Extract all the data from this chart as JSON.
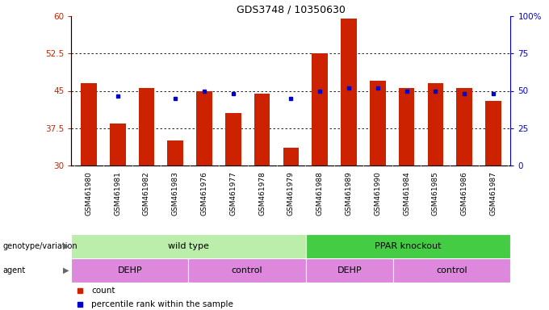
{
  "title": "GDS3748 / 10350630",
  "samples": [
    "GSM461980",
    "GSM461981",
    "GSM461982",
    "GSM461983",
    "GSM461976",
    "GSM461977",
    "GSM461978",
    "GSM461979",
    "GSM461988",
    "GSM461989",
    "GSM461990",
    "GSM461984",
    "GSM461985",
    "GSM461986",
    "GSM461987"
  ],
  "bar_values": [
    46.5,
    38.5,
    45.5,
    35.0,
    45.0,
    40.5,
    44.5,
    33.5,
    52.5,
    59.5,
    47.0,
    45.5,
    46.5,
    45.5,
    43.0
  ],
  "dot_values": [
    null,
    44.0,
    null,
    43.5,
    45.0,
    44.5,
    null,
    43.5,
    45.0,
    45.5,
    45.5,
    45.0,
    45.0,
    44.5,
    44.5
  ],
  "ymin": 30,
  "ymax": 60,
  "yticks": [
    30,
    37.5,
    45,
    52.5,
    60
  ],
  "ytick_labels_left": [
    "30",
    "37.5",
    "45",
    "52.5",
    "60"
  ],
  "ytick_labels_right": [
    "0",
    "25",
    "50",
    "75",
    "100%"
  ],
  "bar_color": "#cc2200",
  "dot_color": "#0000cc",
  "genotype_groups": [
    {
      "label": "wild type",
      "start": 0,
      "end": 8,
      "color": "#bbeeaa"
    },
    {
      "label": "PPAR knockout",
      "start": 8,
      "end": 15,
      "color": "#44cc44"
    }
  ],
  "agent_groups": [
    {
      "label": "DEHP",
      "start": 0,
      "end": 4,
      "color": "#dd88dd"
    },
    {
      "label": "control",
      "start": 4,
      "end": 8,
      "color": "#dd88dd"
    },
    {
      "label": "DEHP",
      "start": 8,
      "end": 11,
      "color": "#dd88dd"
    },
    {
      "label": "control",
      "start": 11,
      "end": 15,
      "color": "#dd88dd"
    }
  ],
  "legend_count_label": "count",
  "legend_pct_label": "percentile rank within the sample",
  "genotype_label": "genotype/variation",
  "agent_label": "agent"
}
